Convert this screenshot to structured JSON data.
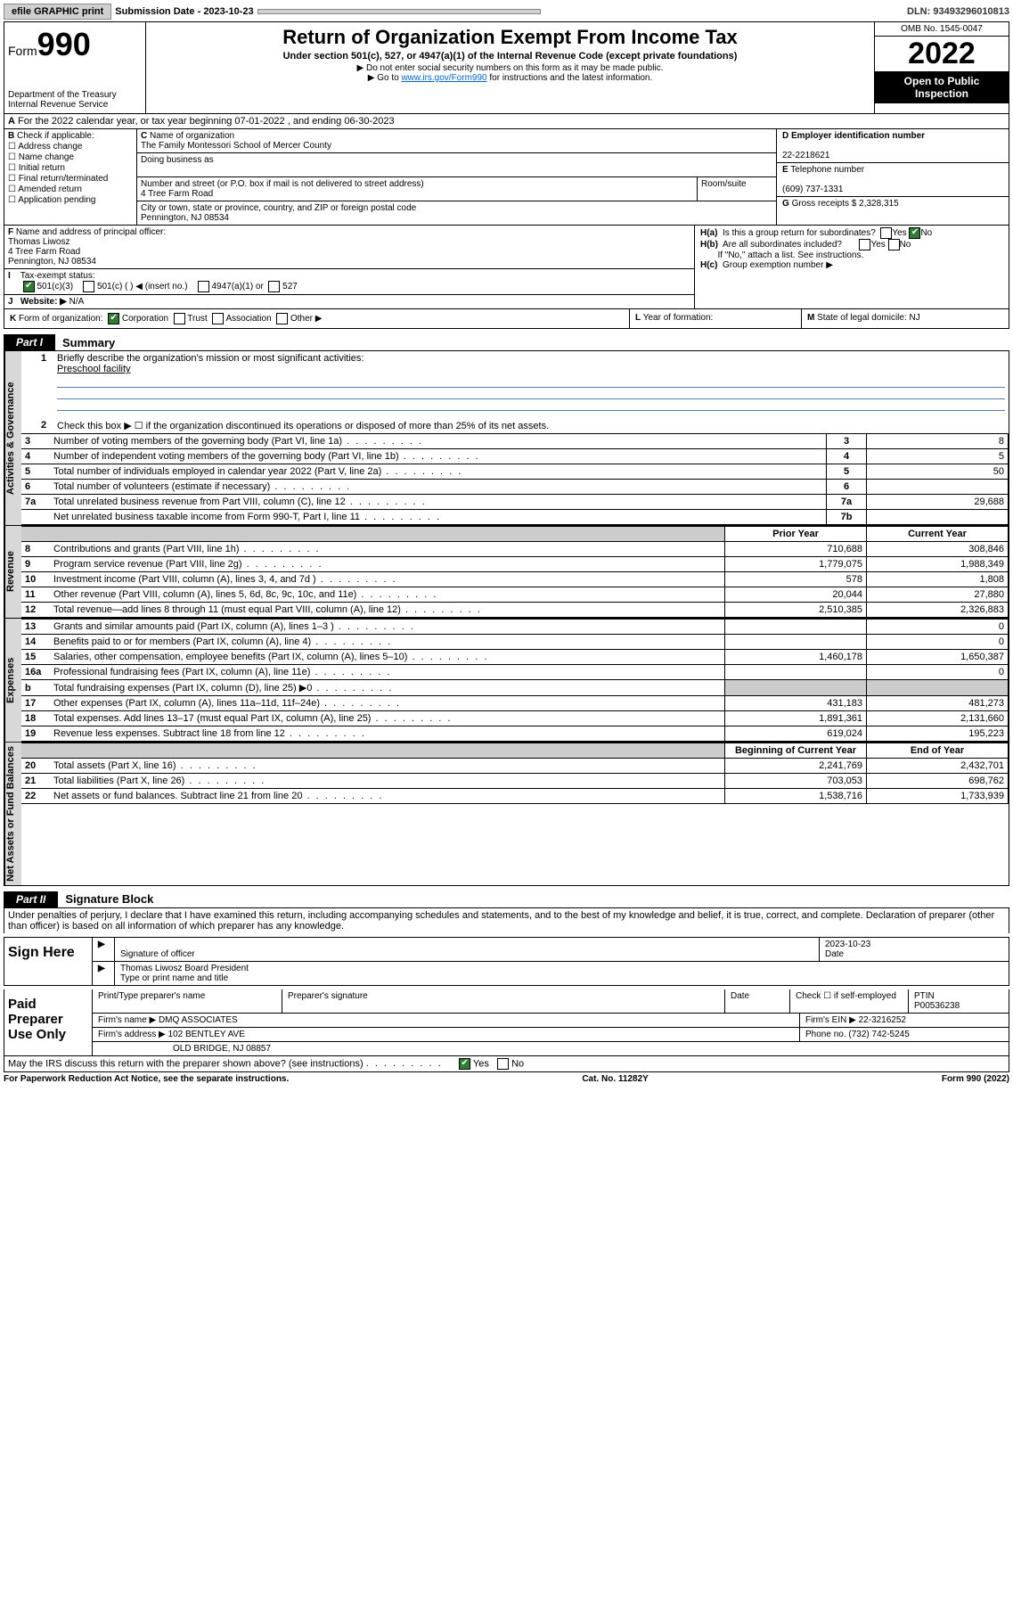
{
  "topbar": {
    "efile": "efile GRAPHIC print",
    "submission_label": "Submission Date - 2023-10-23",
    "dln": "DLN: 93493296010813"
  },
  "header": {
    "form_label": "Form",
    "form_num": "990",
    "title": "Return of Organization Exempt From Income Tax",
    "subtitle": "Under section 501(c), 527, or 4947(a)(1) of the Internal Revenue Code (except private foundations)",
    "note1": "▶ Do not enter social security numbers on this form as it may be made public.",
    "note2_pre": "▶ Go to ",
    "note2_link": "www.irs.gov/Form990",
    "note2_post": " for instructions and the latest information.",
    "dept": "Department of the Treasury",
    "irs": "Internal Revenue Service",
    "omb": "OMB No. 1545-0047",
    "year": "2022",
    "open": "Open to Public Inspection"
  },
  "rowA": "For the 2022 calendar year, or tax year beginning 07-01-2022    , and ending 06-30-2023",
  "B": {
    "label": "Check if applicable:",
    "opts": [
      "Address change",
      "Name change",
      "Initial return",
      "Final return/terminated",
      "Amended return",
      "Application pending"
    ]
  },
  "C": {
    "name_label": "Name of organization",
    "name": "The Family Montessori School of Mercer County",
    "dba_label": "Doing business as",
    "addr_label": "Number and street (or P.O. box if mail is not delivered to street address)",
    "addr": "4 Tree Farm Road",
    "room_label": "Room/suite",
    "city_label": "City or town, state or province, country, and ZIP or foreign postal code",
    "city": "Pennington, NJ  08534"
  },
  "D": {
    "ein_label": "Employer identification number",
    "ein": "22-2218621",
    "tel_label": "Telephone number",
    "tel": "(609) 737-1331",
    "gross_label": "Gross receipts $",
    "gross": "2,328,315"
  },
  "F": {
    "label": "Name and address of principal officer:",
    "name": "Thomas Liwosz",
    "addr": "4 Tree Farm Road",
    "city": "Pennington, NJ  08534"
  },
  "I": {
    "label": "Tax-exempt status:",
    "o1": "501(c)(3)",
    "o2": "501(c) (  ) ◀ (insert no.)",
    "o3": "4947(a)(1) or",
    "o4": "527"
  },
  "J": {
    "label": "Website: ▶",
    "val": "N/A"
  },
  "H": {
    "a": "Is this a group return for subordinates?",
    "b": "Are all subordinates included?",
    "b_note": "If \"No,\" attach a list. See instructions.",
    "c": "Group exemption number ▶",
    "yes": "Yes",
    "no": "No"
  },
  "K": {
    "label": "Form of organization:",
    "o1": "Corporation",
    "o2": "Trust",
    "o3": "Association",
    "o4": "Other ▶",
    "L": "Year of formation:",
    "M": "State of legal domicile: NJ"
  },
  "part1": {
    "tab": "Part I",
    "title": "Summary",
    "l1": "Briefly describe the organization's mission or most significant activities:",
    "l1_val": "Preschool facility",
    "l2": "Check this box ▶ ☐  if the organization discontinued its operations or disposed of more than 25% of its net assets.",
    "sidebars": {
      "gov": "Activities & Governance",
      "rev": "Revenue",
      "exp": "Expenses",
      "net": "Net Assets or Fund Balances"
    },
    "col_prior": "Prior Year",
    "col_curr": "Current Year",
    "col_beg": "Beginning of Current Year",
    "col_end": "End of Year",
    "rows_gov": [
      {
        "n": "3",
        "d": "Number of voting members of the governing body (Part VI, line 1a)",
        "box": "3",
        "v": "8"
      },
      {
        "n": "4",
        "d": "Number of independent voting members of the governing body (Part VI, line 1b)",
        "box": "4",
        "v": "5"
      },
      {
        "n": "5",
        "d": "Total number of individuals employed in calendar year 2022 (Part V, line 2a)",
        "box": "5",
        "v": "50"
      },
      {
        "n": "6",
        "d": "Total number of volunteers (estimate if necessary)",
        "box": "6",
        "v": ""
      },
      {
        "n": "7a",
        "d": "Total unrelated business revenue from Part VIII, column (C), line 12",
        "box": "7a",
        "v": "29,688"
      },
      {
        "n": "",
        "d": "Net unrelated business taxable income from Form 990-T, Part I, line 11",
        "box": "7b",
        "v": ""
      }
    ],
    "rows_rev": [
      {
        "n": "8",
        "d": "Contributions and grants (Part VIII, line 1h)",
        "p": "710,688",
        "c": "308,846"
      },
      {
        "n": "9",
        "d": "Program service revenue (Part VIII, line 2g)",
        "p": "1,779,075",
        "c": "1,988,349"
      },
      {
        "n": "10",
        "d": "Investment income (Part VIII, column (A), lines 3, 4, and 7d )",
        "p": "578",
        "c": "1,808"
      },
      {
        "n": "11",
        "d": "Other revenue (Part VIII, column (A), lines 5, 6d, 8c, 9c, 10c, and 11e)",
        "p": "20,044",
        "c": "27,880"
      },
      {
        "n": "12",
        "d": "Total revenue—add lines 8 through 11 (must equal Part VIII, column (A), line 12)",
        "p": "2,510,385",
        "c": "2,326,883"
      }
    ],
    "rows_exp": [
      {
        "n": "13",
        "d": "Grants and similar amounts paid (Part IX, column (A), lines 1–3 )",
        "p": "",
        "c": "0"
      },
      {
        "n": "14",
        "d": "Benefits paid to or for members (Part IX, column (A), line 4)",
        "p": "",
        "c": "0"
      },
      {
        "n": "15",
        "d": "Salaries, other compensation, employee benefits (Part IX, column (A), lines 5–10)",
        "p": "1,460,178",
        "c": "1,650,387"
      },
      {
        "n": "16a",
        "d": "Professional fundraising fees (Part IX, column (A), line 11e)",
        "p": "",
        "c": "0"
      },
      {
        "n": "b",
        "d": "Total fundraising expenses (Part IX, column (D), line 25) ▶0",
        "p": "GRAY",
        "c": "GRAY"
      },
      {
        "n": "17",
        "d": "Other expenses (Part IX, column (A), lines 11a–11d, 11f–24e)",
        "p": "431,183",
        "c": "481,273"
      },
      {
        "n": "18",
        "d": "Total expenses. Add lines 13–17 (must equal Part IX, column (A), line 25)",
        "p": "1,891,361",
        "c": "2,131,660"
      },
      {
        "n": "19",
        "d": "Revenue less expenses. Subtract line 18 from line 12",
        "p": "619,024",
        "c": "195,223"
      }
    ],
    "rows_net": [
      {
        "n": "20",
        "d": "Total assets (Part X, line 16)",
        "p": "2,241,769",
        "c": "2,432,701"
      },
      {
        "n": "21",
        "d": "Total liabilities (Part X, line 26)",
        "p": "703,053",
        "c": "698,762"
      },
      {
        "n": "22",
        "d": "Net assets or fund balances. Subtract line 21 from line 20",
        "p": "1,538,716",
        "c": "1,733,939"
      }
    ]
  },
  "part2": {
    "tab": "Part II",
    "title": "Signature Block",
    "intro": "Under penalties of perjury, I declare that I have examined this return, including accompanying schedules and statements, and to the best of my knowledge and belief, it is true, correct, and complete. Declaration of preparer (other than officer) is based on all information of which preparer has any knowledge.",
    "sign_here": "Sign Here",
    "sig_officer": "Signature of officer",
    "date_label": "Date",
    "date": "2023-10-23",
    "name_title": "Thomas Liwosz  Board President",
    "name_title_label": "Type or print name and title",
    "paid": "Paid Preparer Use Only",
    "prep_name_label": "Print/Type preparer's name",
    "prep_sig_label": "Preparer's signature",
    "check_self": "Check ☐ if self-employed",
    "ptin_label": "PTIN",
    "ptin": "P00536238",
    "firm_name_label": "Firm's name    ▶",
    "firm_name": "DMQ ASSOCIATES",
    "firm_ein_label": "Firm's EIN ▶",
    "firm_ein": "22-3216252",
    "firm_addr_label": "Firm's address ▶",
    "firm_addr1": "102 BENTLEY AVE",
    "firm_addr2": "OLD BRIDGE, NJ  08857",
    "phone_label": "Phone no.",
    "phone": "(732) 742-5245",
    "discuss": "May the IRS discuss this return with the preparer shown above? (see instructions)"
  },
  "footer": {
    "left": "For Paperwork Reduction Act Notice, see the separate instructions.",
    "mid": "Cat. No. 11282Y",
    "right": "Form 990 (2022)"
  }
}
